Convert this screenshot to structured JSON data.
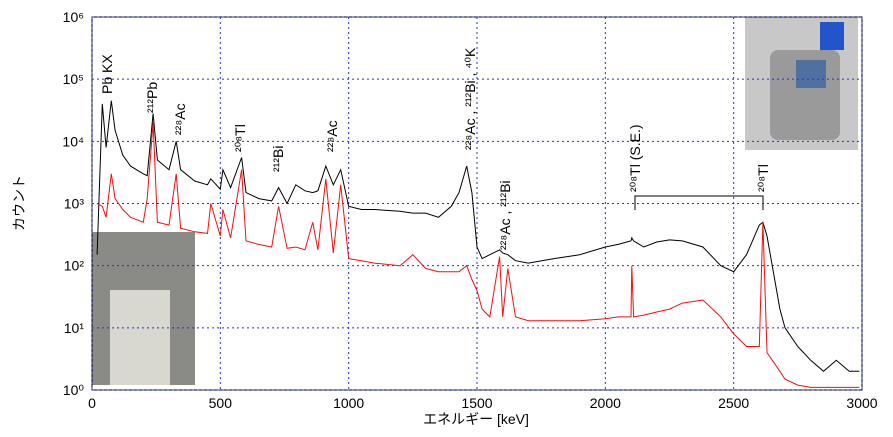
{
  "chart_data": {
    "type": "line",
    "x_label": "エネルギー [keV]",
    "y_label": "カウント",
    "xlim": [
      0,
      3000
    ],
    "xticks": [
      0,
      500,
      1000,
      1500,
      2000,
      2500,
      3000
    ],
    "ylim": [
      1,
      1000000
    ],
    "log_y": true,
    "grid": true,
    "yticks": [
      {
        "value": 1,
        "label": "10⁰"
      },
      {
        "value": 10,
        "label": "10¹"
      },
      {
        "value": 100,
        "label": "10²"
      },
      {
        "value": 1000,
        "label": "10³"
      },
      {
        "value": 10000,
        "label": "10⁴"
      },
      {
        "value": 100000,
        "label": "10⁵"
      },
      {
        "value": 1000000,
        "label": "10⁶"
      }
    ],
    "annotations": [
      "Pb KX",
      "²¹²Pb",
      "²²⁸Ac",
      "²⁰⁸Tl",
      "²¹²Bi",
      "²²⁸Ac",
      "²²⁸Ac , ²¹²Bi , ⁴⁰K",
      "²²⁸Ac , ²¹²Bi",
      "²⁰⁸Tl (S.E.)",
      "²⁰⁸Tl"
    ],
    "x": [
      20,
      40,
      55,
      75,
      90,
      120,
      150,
      200,
      215,
      238,
      255,
      300,
      328,
      345,
      400,
      450,
      463,
      500,
      510,
      540,
      583,
      600,
      650,
      700,
      727,
      760,
      794,
      830,
      860,
      880,
      911,
      940,
      969,
      1000,
      1050,
      1100,
      1200,
      1250,
      1300,
      1350,
      1400,
      1430,
      1460,
      1480,
      1500,
      1520,
      1550,
      1588,
      1600,
      1620,
      1650,
      1700,
      1800,
      1900,
      2000,
      2050,
      2100,
      2103,
      2110,
      2150,
      2200,
      2250,
      2300,
      2380,
      2450,
      2500,
      2550,
      2600,
      2614,
      2630,
      2680,
      2700,
      2750,
      2800,
      2850,
      2900,
      2950,
      2990
    ],
    "series": [
      {
        "color": "#000000",
        "values": [
          150,
          40000,
          8000,
          45000,
          15000,
          6000,
          4000,
          3000,
          2800,
          28000,
          5000,
          3500,
          10000,
          3500,
          2300,
          2000,
          2500,
          1700,
          3500,
          1800,
          5500,
          1500,
          1200,
          1100,
          1800,
          1000,
          2000,
          1600,
          1500,
          1600,
          4000,
          2000,
          3500,
          900,
          800,
          800,
          750,
          700,
          700,
          600,
          900,
          1500,
          4000,
          1500,
          200,
          130,
          150,
          180,
          160,
          150,
          120,
          110,
          130,
          150,
          200,
          220,
          250,
          280,
          250,
          200,
          240,
          260,
          250,
          200,
          100,
          80,
          150,
          450,
          500,
          300,
          20,
          10,
          5,
          3,
          2,
          3,
          2,
          2
        ]
      },
      {
        "color": "#ee1111",
        "values": [
          1000,
          900,
          600,
          3000,
          1200,
          800,
          600,
          500,
          1200,
          20000,
          500,
          450,
          3000,
          400,
          350,
          330,
          1000,
          300,
          800,
          280,
          3500,
          250,
          220,
          200,
          900,
          190,
          200,
          180,
          500,
          180,
          2500,
          160,
          2000,
          130,
          120,
          110,
          100,
          150,
          90,
          80,
          80,
          80,
          100,
          60,
          40,
          20,
          15,
          140,
          15,
          90,
          15,
          13,
          13,
          13,
          14,
          15,
          15,
          100,
          15,
          16,
          18,
          20,
          25,
          28,
          15,
          8,
          5,
          5,
          500,
          4,
          2,
          1.5,
          1.2,
          1.1,
          1.1,
          1.1,
          1.1,
          1.1
        ]
      }
    ]
  }
}
